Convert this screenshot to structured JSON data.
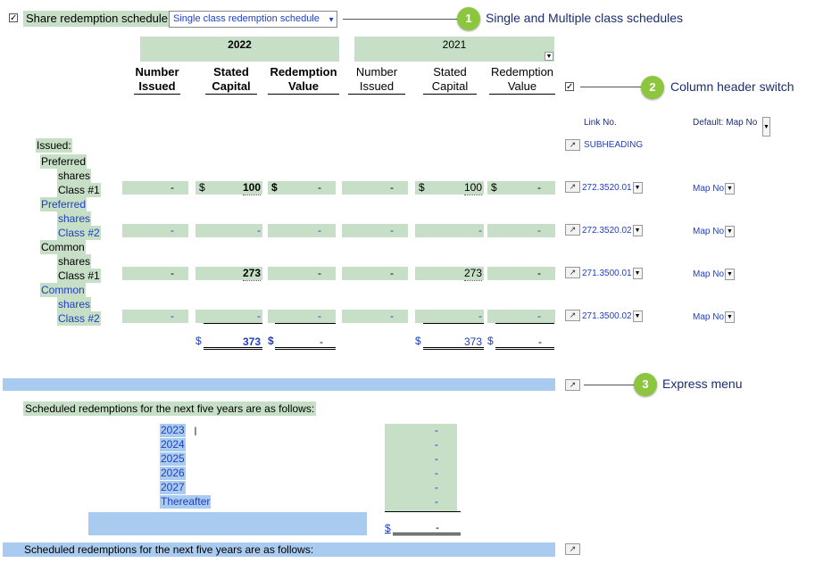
{
  "header": {
    "share_label": "Share redemption schedule",
    "schedule_dropdown": "Single class redemption schedule"
  },
  "callouts": [
    {
      "number": "1",
      "text": "Single and Multiple class schedules"
    },
    {
      "number": "2",
      "text": "Column header switch"
    },
    {
      "number": "3",
      "text": "Express menu"
    }
  ],
  "years": {
    "current": "2022",
    "prior": "2021"
  },
  "columns": {
    "number_issued": [
      "Number",
      "Issued"
    ],
    "stated_capital": [
      "Stated",
      "Capital"
    ],
    "redemption_value": [
      "Redemption",
      "Value"
    ]
  },
  "right_panel": {
    "link_no": "Link No.",
    "default_map": "Default: Map No",
    "subheading": "SUBHEADING"
  },
  "issued_label": "Issued:",
  "rows": [
    {
      "label": [
        "Preferred",
        "shares",
        "Class #1"
      ],
      "label_blue": false,
      "c22": [
        "-",
        "$",
        "100",
        "$",
        "-"
      ],
      "c21": [
        "-",
        "$",
        "100",
        "$",
        "-"
      ],
      "link": "272.3520.01",
      "map": "Map No"
    },
    {
      "label": [
        "Preferred",
        "shares",
        "Class #2"
      ],
      "label_blue": true,
      "c22": [
        "-",
        "",
        "-",
        "",
        "-"
      ],
      "c21": [
        "-",
        "",
        "-",
        "",
        "-"
      ],
      "link": "272.3520.02",
      "map": "Map No"
    },
    {
      "label": [
        "Common",
        "shares",
        "Class #1"
      ],
      "label_blue": false,
      "c22": [
        "-",
        "",
        "273",
        "",
        "-"
      ],
      "c21": [
        "-",
        "",
        "273",
        "",
        "-"
      ],
      "link": "271.3500.01",
      "map": "Map No"
    },
    {
      "label": [
        "Common",
        "shares",
        "Class #2"
      ],
      "label_blue": true,
      "c22": [
        "-",
        "",
        "-",
        "",
        "-"
      ],
      "c21": [
        "-",
        "",
        "-",
        "",
        "-"
      ],
      "link": "271.3500.02",
      "map": "Map No"
    }
  ],
  "totals": {
    "c22": [
      "$",
      "373",
      "$",
      "-"
    ],
    "c21": [
      "$",
      "373",
      "$",
      "-"
    ]
  },
  "scheduled": {
    "title": "Scheduled redemptions for the next five years are as follows:",
    "years": [
      "2023",
      "2024",
      "2025",
      "2026",
      "2027",
      "Thereafter"
    ],
    "values": [
      "-",
      "-",
      "-",
      "-",
      "-",
      "-"
    ],
    "total_dollar": "$",
    "total_value": "-"
  },
  "footer_title": "Scheduled redemptions for the next five years are as follows:",
  "checkbox_mark": "✓"
}
